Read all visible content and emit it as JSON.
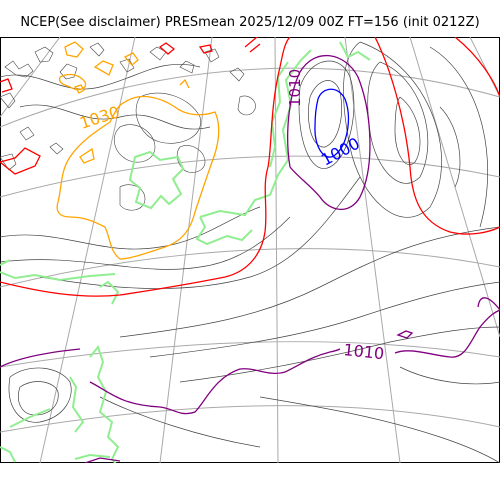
{
  "title": "NCEP(See disclaimer) PRESmean 2025/12/09 00Z FT=156 (init 0212Z)",
  "map": {
    "variable": "PRESmean",
    "contour_labels": {
      "l1030": "1030",
      "l1010a": "1010",
      "l1000": "1000",
      "l1010b": "1010"
    },
    "colors": {
      "contour_1000": "#0000ff",
      "contour_1010": "#800080",
      "contour_1020": "#ff0000",
      "contour_1030": "#ffa500",
      "coastline": "#90ee90",
      "graticule": "#a9a9a9",
      "minor_contour": "#444444"
    }
  }
}
